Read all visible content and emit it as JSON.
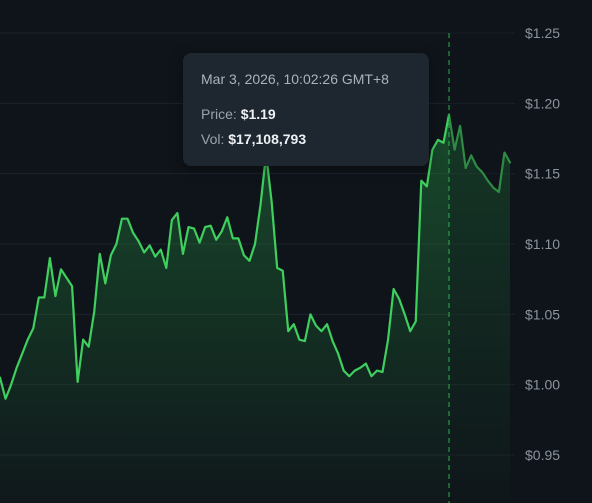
{
  "chart_data": {
    "type": "area",
    "y_ticks": [
      "$1.25",
      "$1.20",
      "$1.15",
      "$1.10",
      "$1.05",
      "$1.00",
      "$0.95"
    ],
    "y_tick_values": [
      1.25,
      1.2,
      1.15,
      1.1,
      1.05,
      1.0,
      0.95
    ],
    "ylim": [
      0.95,
      1.25
    ],
    "grid": true,
    "line_color": "#3fcf5e",
    "values": [
      1.005,
      0.99,
      1.0,
      1.012,
      1.022,
      1.032,
      1.04,
      1.062,
      1.062,
      1.09,
      1.063,
      1.082,
      1.076,
      1.07,
      1.002,
      1.032,
      1.027,
      1.052,
      1.093,
      1.072,
      1.092,
      1.1,
      1.118,
      1.118,
      1.108,
      1.102,
      1.094,
      1.099,
      1.091,
      1.096,
      1.083,
      1.117,
      1.122,
      1.093,
      1.112,
      1.111,
      1.101,
      1.112,
      1.113,
      1.103,
      1.109,
      1.119,
      1.104,
      1.104,
      1.092,
      1.088,
      1.1,
      1.128,
      1.164,
      1.13,
      1.083,
      1.081,
      1.038,
      1.043,
      1.032,
      1.031,
      1.05,
      1.042,
      1.038,
      1.043,
      1.031,
      1.022,
      1.01,
      1.006,
      1.01,
      1.012,
      1.015,
      1.006,
      1.01,
      1.009,
      1.032,
      1.068,
      1.061,
      1.05,
      1.038,
      1.045,
      1.145,
      1.141,
      1.167,
      1.174,
      1.172,
      1.192,
      1.167,
      1.184,
      1.154,
      1.163,
      1.155,
      1.151,
      1.145,
      1.14,
      1.137,
      1.165,
      1.158
    ],
    "hover_index": 81
  },
  "tooltip": {
    "time": "Mar 3, 2026, 10:02:26 GMT+8",
    "price_label": "Price:",
    "price_value": "$1.19",
    "vol_label": "Vol:",
    "vol_value": "$17,108,793"
  }
}
